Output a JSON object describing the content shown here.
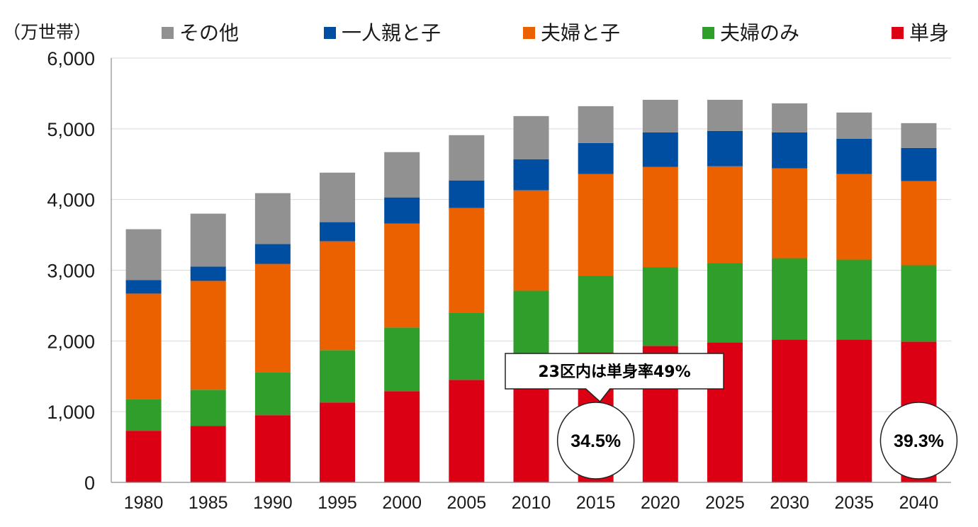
{
  "chart_data": {
    "type": "bar",
    "stacked": true,
    "unit_label": "（万世帯）",
    "categories": [
      "1980",
      "1985",
      "1990",
      "1995",
      "2000",
      "2005",
      "2010",
      "2015",
      "2020",
      "2025",
      "2030",
      "2035",
      "2040"
    ],
    "series": [
      {
        "name": "単身",
        "color": "#dc0014",
        "values": [
          730,
          800,
          950,
          1130,
          1290,
          1450,
          1680,
          1840,
          1930,
          1980,
          2020,
          2020,
          1990
        ]
      },
      {
        "name": "夫婦のみ",
        "color": "#2f9e2a",
        "values": [
          450,
          510,
          610,
          740,
          900,
          950,
          1030,
          1080,
          1110,
          1120,
          1150,
          1130,
          1080
        ]
      },
      {
        "name": "夫婦と子",
        "color": "#eb6100",
        "values": [
          1490,
          1540,
          1530,
          1540,
          1470,
          1480,
          1420,
          1440,
          1420,
          1370,
          1270,
          1210,
          1190
        ]
      },
      {
        "name": "一人親と子",
        "color": "#004ea2",
        "values": [
          190,
          200,
          280,
          270,
          370,
          390,
          440,
          440,
          490,
          500,
          510,
          500,
          470
        ]
      },
      {
        "name": "その他",
        "color": "#919191",
        "values": [
          720,
          750,
          720,
          700,
          640,
          640,
          610,
          520,
          460,
          440,
          410,
          370,
          350
        ]
      }
    ],
    "legend_order": [
      "その他",
      "一人親と子",
      "夫婦と子",
      "夫婦のみ",
      "単身"
    ],
    "legend_position": "top",
    "ylim": [
      0,
      6000
    ],
    "yticks": [
      0,
      1000,
      2000,
      3000,
      4000,
      5000,
      6000
    ],
    "ytick_labels": [
      "0",
      "1,000",
      "2,000",
      "3,000",
      "4,000",
      "5,000",
      "6,000"
    ],
    "grid": true,
    "annotations": [
      {
        "kind": "callout",
        "text": "23区内は単身率49%",
        "category": "2015"
      },
      {
        "kind": "circle",
        "text": "34.5%",
        "category": "2015"
      },
      {
        "kind": "circle",
        "text": "39.3%",
        "category": "2040"
      }
    ]
  }
}
